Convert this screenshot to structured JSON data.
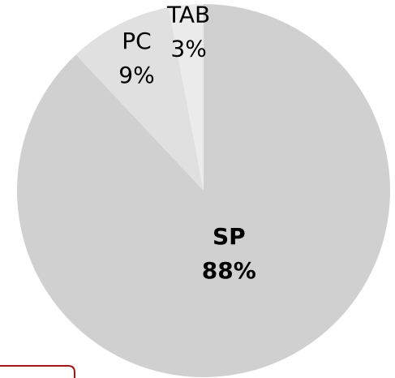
{
  "chart_data": {
    "type": "pie",
    "categories": [
      "SP",
      "PC",
      "TAB"
    ],
    "values": [
      88,
      9,
      3
    ],
    "value_labels": [
      "88%",
      "9%",
      "3%"
    ],
    "colors": [
      "#d0d0d0",
      "#e0e0e0",
      "#ebebeb"
    ]
  }
}
